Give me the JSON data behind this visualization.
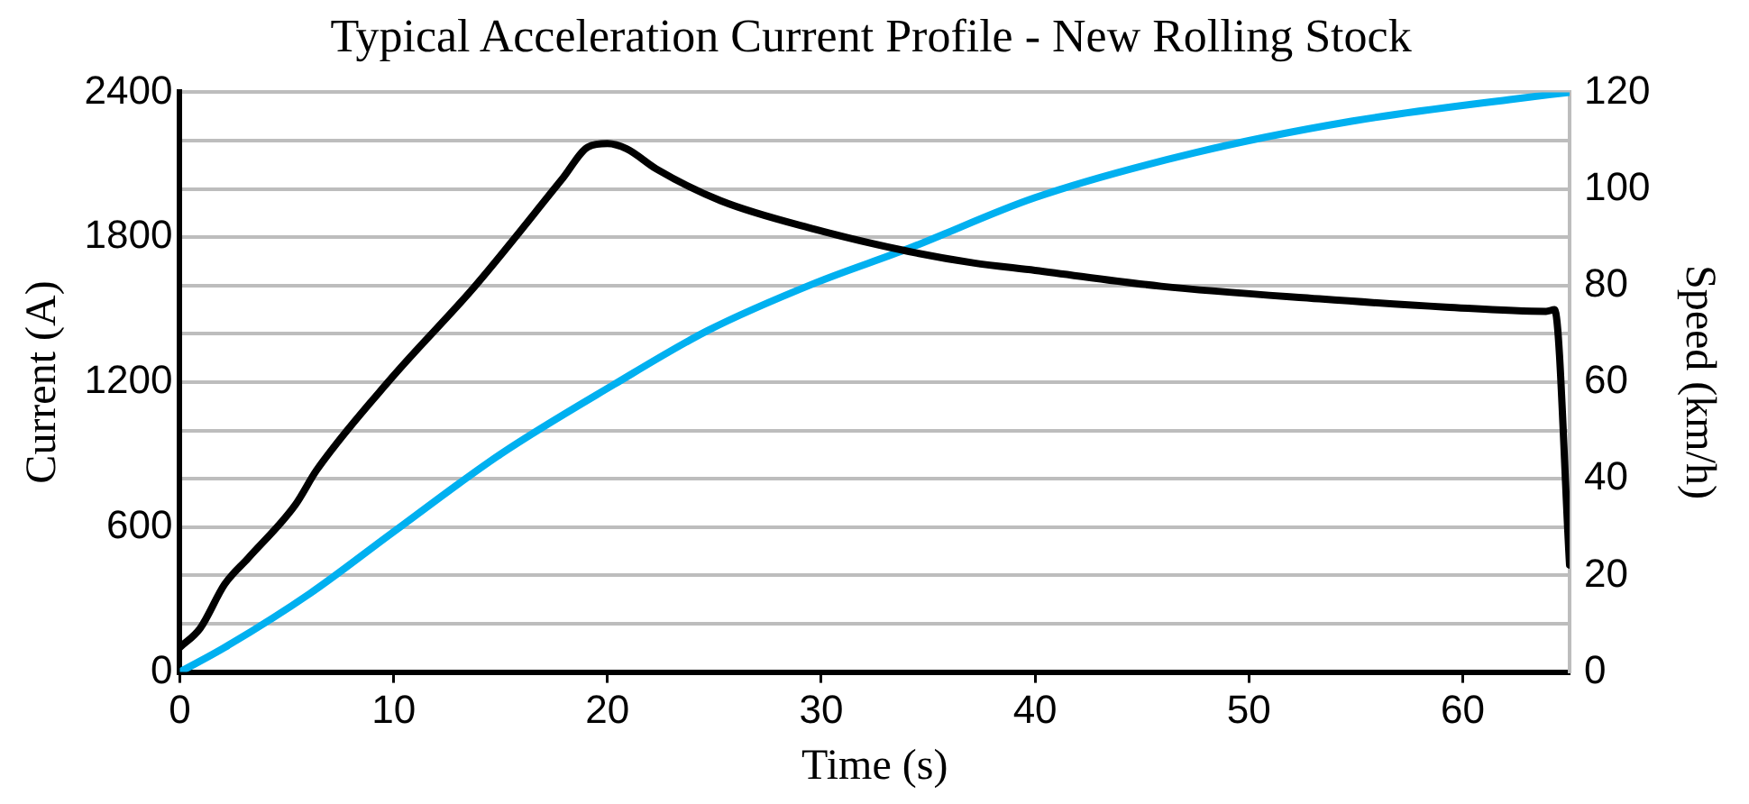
{
  "chart_data": {
    "type": "line",
    "title": "Typical Acceleration Current Profile - New Rolling Stock",
    "xlabel": "Time (s)",
    "ylabel": "Current (A)",
    "y2label": "Speed (km/h)",
    "xlim": [
      0,
      65
    ],
    "xticks": [
      0,
      10,
      20,
      30,
      40,
      50,
      60
    ],
    "ylim": [
      0,
      2400
    ],
    "yticks": [
      0,
      {
        "value": 200,
        "label": null
      },
      {
        "value": 400,
        "label": null
      },
      600,
      {
        "value": 800,
        "label": null
      },
      {
        "value": 1000,
        "label": null
      },
      1200,
      {
        "value": 1400,
        "label": null
      },
      {
        "value": 1600,
        "label": null
      },
      1800,
      {
        "value": 2000,
        "label": null
      },
      {
        "value": 2200,
        "label": null
      },
      2400
    ],
    "y2lim": [
      0,
      120
    ],
    "y2ticks": [
      0,
      20,
      40,
      60,
      80,
      100,
      120
    ],
    "grid": "y",
    "marker": "none",
    "line_style": "solid",
    "series": [
      {
        "color": "#000000",
        "x": [
          0,
          0.95,
          2.1,
          3.2,
          5.4,
          6.4,
          9.9,
          13.8,
          17.9,
          19.1,
          20.0,
          20.9,
          22.3,
          25.3,
          29.7,
          34.1,
          37.1,
          40.0,
          45.9,
          53.3,
          59.2,
          63.9,
          64.3,
          65
        ],
        "values": [
          102,
          181,
          364,
          472,
          692,
          836,
          1217,
          1597,
          2043,
          2174,
          2188,
          2166,
          2082,
          1951,
          1833,
          1741,
          1694,
          1663,
          1597,
          1545,
          1511,
          1493,
          1500,
          443
        ]
      },
      {
        "color": "#00b0f0",
        "axis": "y2",
        "x": [
          0,
          2.1,
          6.1,
          9.9,
          15.0,
          20.3,
          24.7,
          29.7,
          34.1,
          40.0,
          47.4,
          54.8,
          62.2,
          65
        ],
        "values": [
          0,
          5.1,
          16.3,
          28.7,
          45.1,
          59.5,
          70.7,
          80.5,
          87.7,
          98.2,
          107.4,
          114,
          118.5,
          120
        ]
      }
    ]
  }
}
